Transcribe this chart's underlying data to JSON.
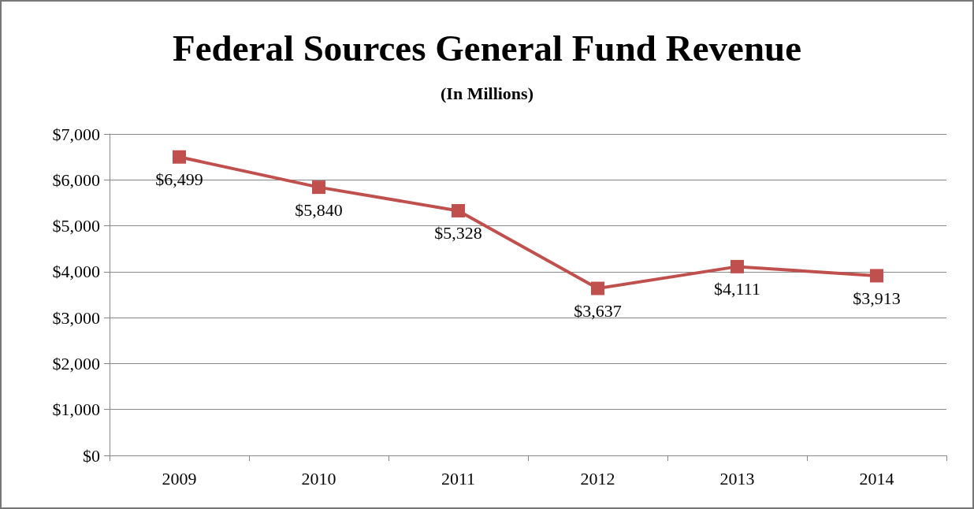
{
  "chart_data": {
    "type": "line",
    "title": "Federal Sources General Fund Revenue",
    "subtitle": "(In Millions)",
    "categories": [
      "2009",
      "2010",
      "2011",
      "2012",
      "2013",
      "2014"
    ],
    "series": [
      {
        "color": "#c0504d",
        "values": [
          6499,
          5840,
          5328,
          3637,
          4111,
          3913
        ],
        "value_labels": [
          "$6,499",
          "$5,840",
          "$5,328",
          "$3,637",
          "$4,111",
          "$3,913"
        ]
      }
    ],
    "ylim": [
      0,
      7000
    ],
    "yticks": [
      {
        "value": 0,
        "label": "$0"
      },
      {
        "value": 1000,
        "label": "$1,000"
      },
      {
        "value": 2000,
        "label": "$2,000"
      },
      {
        "value": 3000,
        "label": "$3,000"
      },
      {
        "value": 4000,
        "label": "$4,000"
      },
      {
        "value": 5000,
        "label": "$5,000"
      },
      {
        "value": 6000,
        "label": "$6,000"
      },
      {
        "value": 7000,
        "label": "$7,000"
      }
    ],
    "grid": "y",
    "marker": "square",
    "line_style": "solid"
  }
}
